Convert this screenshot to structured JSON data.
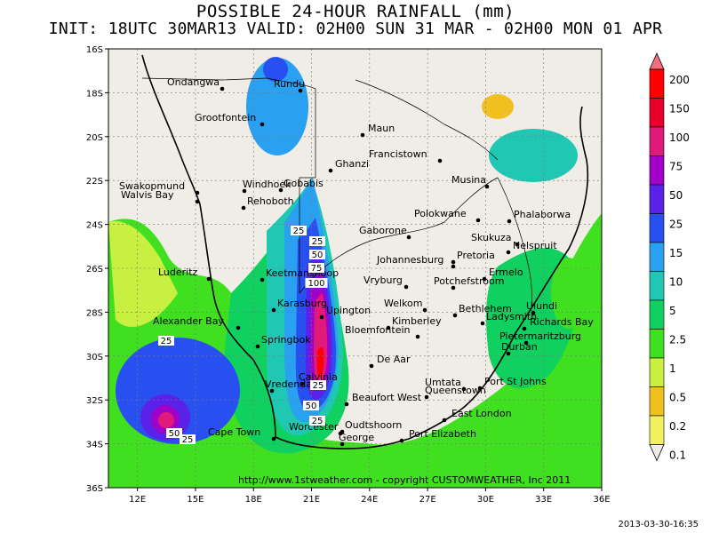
{
  "title": {
    "line1": "POSSIBLE 24-HOUR  RAINFALL (mm)",
    "line2": "INIT: 18UTC 30MAR13  VALID: 02H00 SUN 31 MAR - 02H00 MON 01 APR"
  },
  "timestamp": "2013-03-30-16:35",
  "copyright": "http://www.1stweather.com - copyright CUSTOMWEATHER, Inc 2011",
  "axes": {
    "lat_labels": [
      "16S",
      "18S",
      "20S",
      "22S",
      "24S",
      "26S",
      "28S",
      "30S",
      "32S",
      "34S",
      "36S"
    ],
    "lon_labels": [
      "12E",
      "15E",
      "18E",
      "21E",
      "24E",
      "27E",
      "30E",
      "33E",
      "36E"
    ]
  },
  "legend": {
    "levels": [
      "200",
      "150",
      "100",
      "75",
      "50",
      "25",
      "15",
      "10",
      "5",
      "2.5",
      "1",
      "0.5",
      "0.2",
      "0.1"
    ],
    "colors": [
      "#ff0000",
      "#e8002a",
      "#e01a7a",
      "#a000c8",
      "#5a22e8",
      "#2850f0",
      "#2aa0f0",
      "#20c8b4",
      "#10d060",
      "#40e020",
      "#c8f040",
      "#f0c020",
      "#f0f060",
      "#f0ece6"
    ]
  },
  "cities": [
    {
      "name": "Ondangwa"
    },
    {
      "name": "Rundu"
    },
    {
      "name": "Grootfontein"
    },
    {
      "name": "Maun"
    },
    {
      "name": "Francistown"
    },
    {
      "name": "Ghanzi"
    },
    {
      "name": "Swakopmund"
    },
    {
      "name": "Walvis Bay"
    },
    {
      "name": "Windhoek"
    },
    {
      "name": "Gobabis"
    },
    {
      "name": "Rehoboth"
    },
    {
      "name": "Musina"
    },
    {
      "name": "Polokwane"
    },
    {
      "name": "Phalaborwa"
    },
    {
      "name": "Gaborone"
    },
    {
      "name": "Skukuza"
    },
    {
      "name": "Pretoria"
    },
    {
      "name": "Nelspruit"
    },
    {
      "name": "Johannesburg"
    },
    {
      "name": "Ermelo"
    },
    {
      "name": "Luderitz"
    },
    {
      "name": "Keetmanshoop"
    },
    {
      "name": "Vryburg"
    },
    {
      "name": "Potchefstroom"
    },
    {
      "name": "Karasburg"
    },
    {
      "name": "Upington"
    },
    {
      "name": "Welkom"
    },
    {
      "name": "Bethlehem"
    },
    {
      "name": "Ulundi"
    },
    {
      "name": "Ladysmith"
    },
    {
      "name": "Richards Bay"
    },
    {
      "name": "Alexander Bay"
    },
    {
      "name": "Kimberley"
    },
    {
      "name": "Pietermaritzburg"
    },
    {
      "name": "Bloemfontein"
    },
    {
      "name": "Springbok"
    },
    {
      "name": "Durban"
    },
    {
      "name": "De Aar"
    },
    {
      "name": "Calvinia"
    },
    {
      "name": "Umtata"
    },
    {
      "name": "Port St Johns"
    },
    {
      "name": "Queenstown"
    },
    {
      "name": "Vredendal"
    },
    {
      "name": "Beaufort West"
    },
    {
      "name": "East London"
    },
    {
      "name": "Worcester"
    },
    {
      "name": "Oudtshoorn"
    },
    {
      "name": "Cape Town"
    },
    {
      "name": "Port Elizabeth"
    },
    {
      "name": "George"
    }
  ],
  "contour_labels": [
    "25",
    "25",
    "50",
    "75",
    "100",
    "25",
    "50",
    "25",
    "25",
    "50",
    "25"
  ]
}
